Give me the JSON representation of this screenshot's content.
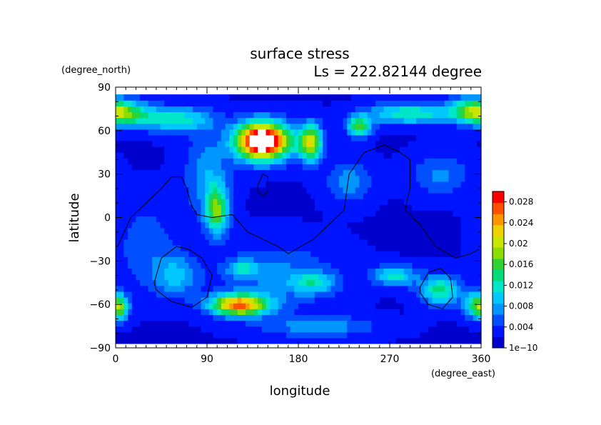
{
  "chart_data": {
    "type": "heatmap",
    "title": "surface stress",
    "subtitle": "Ls = 222.82144 degree",
    "xlabel": "longitude",
    "ylabel": "latitude",
    "x_unit": "(degree_east)",
    "y_unit": "(degree_north)",
    "xlim": [
      0,
      360
    ],
    "ylim": [
      -90,
      90
    ],
    "x_ticks": [
      0,
      90,
      180,
      270,
      360
    ],
    "y_ticks": [
      -90,
      -60,
      -30,
      0,
      30,
      60,
      90
    ],
    "x_tick_labels": [
      "0",
      "90",
      "180",
      "270",
      "360"
    ],
    "y_tick_labels": [
      "−90",
      "−60",
      "−30",
      "0",
      "30",
      "60",
      "90"
    ],
    "data_lat_range": [
      -87,
      85
    ],
    "colorbar": {
      "min": 0,
      "max": 0.03,
      "tick_values": [
        0,
        0.004,
        0.008,
        0.012,
        0.016,
        0.02,
        0.024,
        0.028
      ],
      "tick_labels": [
        "1e−10",
        "0.004",
        "0.008",
        "0.012",
        "0.016",
        "0.02",
        "0.024",
        "0.028"
      ],
      "colors": [
        "#0000cd",
        "#0014ff",
        "#0050ff",
        "#0096ff",
        "#00c8ff",
        "#00e6c8",
        "#00dc78",
        "#32d232",
        "#8cdc00",
        "#c8e600",
        "#f0d200",
        "#ff9600",
        "#ff5000",
        "#ff0000",
        "#ffffff"
      ]
    },
    "background_value": 0.002,
    "hotspots": [
      {
        "lon": 145,
        "lat": 53,
        "amp": 0.036,
        "sx": 18,
        "sy": 9
      },
      {
        "lon": 122,
        "lat": -60,
        "amp": 0.024,
        "sx": 20,
        "sy": 5
      },
      {
        "lon": 192,
        "lat": 52,
        "amp": 0.019,
        "sx": 8,
        "sy": 9
      },
      {
        "lon": 100,
        "lat": 5,
        "amp": 0.014,
        "sx": 8,
        "sy": 12
      },
      {
        "lon": 240,
        "lat": 63,
        "amp": 0.014,
        "sx": 8,
        "sy": 5
      },
      {
        "lon": 10,
        "lat": 72,
        "amp": 0.012,
        "sx": 18,
        "sy": 6
      },
      {
        "lon": 60,
        "lat": 68,
        "amp": 0.01,
        "sx": 25,
        "sy": 6
      },
      {
        "lon": 290,
        "lat": 72,
        "amp": 0.011,
        "sx": 30,
        "sy": 5
      },
      {
        "lon": 350,
        "lat": 75,
        "amp": 0.011,
        "sx": 15,
        "sy": 6
      },
      {
        "lon": 320,
        "lat": -50,
        "amp": 0.012,
        "sx": 14,
        "sy": 7
      },
      {
        "lon": 275,
        "lat": -40,
        "amp": 0.01,
        "sx": 15,
        "sy": 5
      },
      {
        "lon": 355,
        "lat": -60,
        "amp": 0.013,
        "sx": 8,
        "sy": 6
      },
      {
        "lon": 5,
        "lat": -62,
        "amp": 0.011,
        "sx": 6,
        "sy": 6
      },
      {
        "lon": 230,
        "lat": 25,
        "amp": 0.006,
        "sx": 15,
        "sy": 10
      },
      {
        "lon": 125,
        "lat": -35,
        "amp": 0.008,
        "sx": 10,
        "sy": 4
      },
      {
        "lon": 195,
        "lat": -45,
        "amp": 0.008,
        "sx": 15,
        "sy": 5
      },
      {
        "lon": 60,
        "lat": -40,
        "amp": 0.007,
        "sx": 15,
        "sy": 10
      },
      {
        "lon": 90,
        "lat": 30,
        "amp": 0.006,
        "sx": 15,
        "sy": 20
      },
      {
        "lon": 160,
        "lat": -40,
        "amp": 0.005,
        "sx": 40,
        "sy": 15
      },
      {
        "lon": 320,
        "lat": 30,
        "amp": 0.005,
        "sx": 20,
        "sy": 10
      },
      {
        "lon": 200,
        "lat": -75,
        "amp": 0.006,
        "sx": 40,
        "sy": 5
      },
      {
        "lon": 30,
        "lat": -20,
        "amp": 0.004,
        "sx": 20,
        "sy": 20
      }
    ],
    "contours": [
      {
        "points": [
          [
            2,
            -20
          ],
          [
            15,
            0
          ],
          [
            30,
            10
          ],
          [
            45,
            20
          ],
          [
            55,
            28
          ],
          [
            65,
            28
          ],
          [
            70,
            20
          ],
          [
            75,
            8
          ],
          [
            80,
            2
          ],
          [
            95,
            0
          ],
          [
            115,
            2
          ],
          [
            130,
            -10
          ],
          [
            145,
            -15
          ],
          [
            160,
            -20
          ],
          [
            170,
            -25
          ],
          [
            195,
            -15
          ],
          [
            210,
            -5
          ],
          [
            225,
            5
          ],
          [
            230,
            30
          ],
          [
            245,
            45
          ],
          [
            265,
            50
          ],
          [
            280,
            45
          ],
          [
            290,
            40
          ],
          [
            290,
            20
          ],
          [
            285,
            5
          ],
          [
            300,
            -5
          ],
          [
            315,
            -20
          ],
          [
            335,
            -28
          ],
          [
            350,
            -25
          ],
          [
            358,
            -22
          ]
        ],
        "closed": false
      },
      {
        "points": [
          [
            38,
            -45
          ],
          [
            45,
            -28
          ],
          [
            60,
            -20
          ],
          [
            72,
            -22
          ],
          [
            85,
            -28
          ],
          [
            95,
            -40
          ],
          [
            90,
            -55
          ],
          [
            75,
            -62
          ],
          [
            55,
            -58
          ],
          [
            40,
            -50
          ]
        ],
        "closed": true
      },
      {
        "points": [
          [
            300,
            -48
          ],
          [
            308,
            -38
          ],
          [
            320,
            -35
          ],
          [
            330,
            -42
          ],
          [
            332,
            -55
          ],
          [
            322,
            -63
          ],
          [
            308,
            -60
          ],
          [
            300,
            -52
          ]
        ],
        "closed": true
      },
      {
        "points": [
          [
            140,
            22
          ],
          [
            145,
            30
          ],
          [
            150,
            28
          ],
          [
            150,
            18
          ],
          [
            145,
            15
          ],
          [
            140,
            18
          ]
        ],
        "closed": true
      }
    ]
  }
}
